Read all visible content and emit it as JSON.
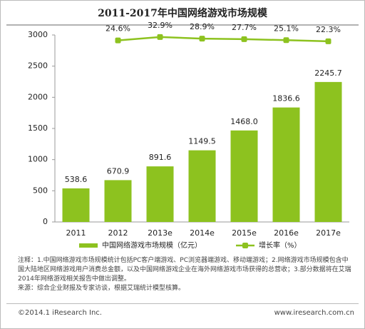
{
  "chart_data": {
    "type": "bar",
    "title": "2011-2017年中国网络游戏市场规模",
    "categories": [
      "2011",
      "2012",
      "2013e",
      "2014e",
      "2015e",
      "2016e",
      "2017e"
    ],
    "series": [
      {
        "name": "中国网络游戏市场规模（亿元）",
        "color": "#8dc21f",
        "values": [
          538.6,
          670.9,
          891.6,
          1149.5,
          1468.0,
          1836.6,
          2245.7
        ],
        "value_labels": [
          "538.6",
          "670.9",
          "891.6",
          "1149.5",
          "1468.0",
          "1836.6",
          "2245.7"
        ]
      },
      {
        "name": "增长率（%）",
        "type": "line",
        "axis": "y2",
        "color": "#8dc21f",
        "values": [
          null,
          24.6,
          32.9,
          28.9,
          27.7,
          25.1,
          22.3
        ],
        "value_labels": [
          null,
          "24.6%",
          "32.9%",
          "28.9%",
          "27.7%",
          "25.1%",
          "22.3%"
        ]
      }
    ],
    "ylim": [
      0,
      3000
    ],
    "yticks": [
      0,
      500,
      1000,
      1500,
      2000,
      2500,
      3000
    ],
    "y2lim": [
      -425,
      38
    ],
    "grid": false,
    "legend": "bottom"
  },
  "notes": "注释：1.中国网络游戏市场规模统计包括PC客户端游戏、PC浏览器端游戏、移动端游戏；2.网络游戏市场规模包含中国大陆地区网络游戏用户消费总金额，以及中国网络游戏企业在海外网络游戏市场获得的总营收；3.部分数据将在艾瑞2014年网络游戏相关报告中做出调整。",
  "source": "来源：综合企业财报及专家访谈，根据艾瑞统计模型核算。",
  "footer": {
    "copyright": "©2014.1 iResearch Inc.",
    "website": "www.iresearch.com.cn"
  }
}
